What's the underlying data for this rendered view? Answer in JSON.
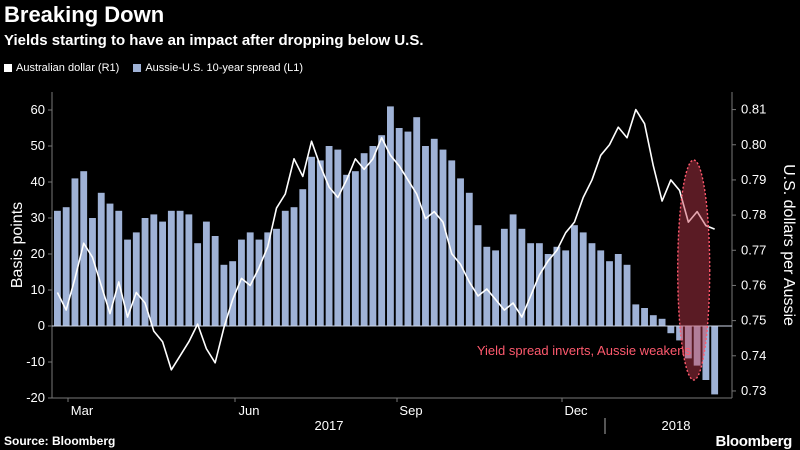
{
  "header": {
    "title": "Breaking Down",
    "subtitle": "Yields starting to have an impact after dropping below U.S."
  },
  "legend": {
    "items": [
      {
        "label": "Australian dollar (R1)",
        "color": "#ffffff"
      },
      {
        "label": "Aussie-U.S. 10-year spread (L1)",
        "color": "#9fb2d6"
      }
    ]
  },
  "footer": {
    "source": "Source: Bloomberg",
    "brand": "Bloomberg"
  },
  "chart_data": {
    "type": "bar+line",
    "title": "Breaking Down",
    "subtitle": "Yields starting to have an impact after dropping below U.S.",
    "ylabel_left": "Basis points",
    "ylabel_right": "U.S. dollars per Aussie",
    "ylim_left": [
      -20,
      65
    ],
    "ylim_right": [
      0.728,
      0.815
    ],
    "yticks_left": [
      -20,
      -10,
      0,
      10,
      20,
      30,
      40,
      50,
      60
    ],
    "yticks_right": [
      0.73,
      0.74,
      0.75,
      0.76,
      0.77,
      0.78,
      0.79,
      0.8,
      0.81
    ],
    "ytick_labels_right": [
      "0.73",
      "0.74",
      "0.75",
      "0.76",
      "0.77",
      "0.78",
      "0.79",
      "0.80",
      "0.81"
    ],
    "x_month_labels": [
      "Mar",
      "Jun",
      "Sep",
      "Dec"
    ],
    "x_year_labels": [
      "2017",
      "2018"
    ],
    "annotation": "Yield spread inverts, Aussie weakens",
    "annotation_color": "#ff5a6e",
    "series": [
      {
        "name": "Aussie-U.S. 10-year spread (L1)",
        "kind": "bar",
        "color": "#9fb2d6",
        "weekly_values": [
          32,
          33,
          41,
          43,
          30,
          37,
          34,
          32,
          24,
          26,
          30,
          31,
          29,
          32,
          32,
          31,
          23,
          29,
          25,
          17,
          18,
          24,
          26,
          24,
          26,
          27,
          32,
          33,
          38,
          47,
          46,
          50,
          49,
          42,
          43,
          48,
          50,
          53,
          61,
          55,
          54,
          58,
          50,
          52,
          49,
          46,
          41,
          37,
          28,
          22,
          21,
          27,
          31,
          27,
          23,
          23,
          20,
          22,
          21,
          28,
          26,
          23,
          21,
          18,
          20,
          17,
          6,
          5,
          3,
          2,
          -2,
          -4,
          -9,
          -11,
          -15,
          -19
        ]
      },
      {
        "name": "Australian dollar (R1)",
        "kind": "line",
        "color": "#ffffff",
        "weekly_values": [
          0.758,
          0.753,
          0.762,
          0.772,
          0.768,
          0.76,
          0.752,
          0.761,
          0.751,
          0.758,
          0.755,
          0.747,
          0.744,
          0.736,
          0.74,
          0.744,
          0.749,
          0.742,
          0.738,
          0.748,
          0.756,
          0.762,
          0.76,
          0.765,
          0.771,
          0.782,
          0.786,
          0.796,
          0.791,
          0.801,
          0.794,
          0.788,
          0.785,
          0.79,
          0.796,
          0.793,
          0.796,
          0.802,
          0.797,
          0.794,
          0.79,
          0.786,
          0.779,
          0.781,
          0.778,
          0.769,
          0.766,
          0.761,
          0.757,
          0.759,
          0.756,
          0.753,
          0.755,
          0.751,
          0.757,
          0.763,
          0.767,
          0.77,
          0.775,
          0.778,
          0.785,
          0.79,
          0.797,
          0.8,
          0.805,
          0.802,
          0.81,
          0.806,
          0.794,
          0.784,
          0.79,
          0.787,
          0.778,
          0.781,
          0.777,
          0.776
        ]
      }
    ]
  }
}
